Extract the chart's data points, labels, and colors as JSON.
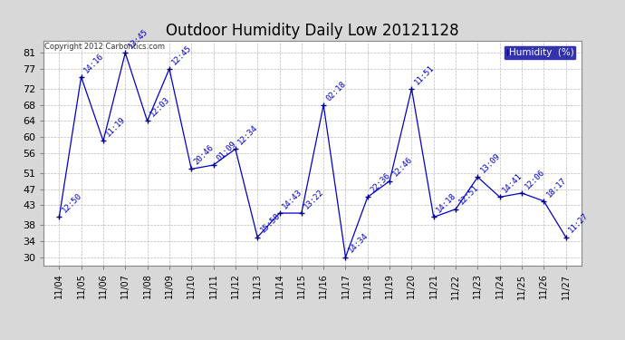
{
  "title": "Outdoor Humidity Daily Low 20121128",
  "background_color": "#d8d8d8",
  "plot_bg_color": "#ffffff",
  "line_color": "#0000cc",
  "marker_color": "#000080",
  "text_color": "#0000cc",
  "copyright_text": "Copyright 2012 Carbontics.com",
  "legend_label": "Humidity  (%)",
  "legend_bg": "#000099",
  "legend_text_color": "#ffffff",
  "yticks": [
    30,
    34,
    38,
    43,
    47,
    51,
    56,
    60,
    64,
    68,
    72,
    77,
    81
  ],
  "xlabels": [
    "11/04",
    "11/05",
    "11/06",
    "11/07",
    "11/08",
    "11/09",
    "11/10",
    "11/11",
    "11/12",
    "11/13",
    "11/14",
    "11/15",
    "11/16",
    "11/17",
    "11/18",
    "11/19",
    "11/20",
    "11/21",
    "11/22",
    "11/23",
    "11/24",
    "11/25",
    "11/26",
    "11/27"
  ],
  "x_indices": [
    0,
    1,
    2,
    3,
    4,
    5,
    6,
    7,
    8,
    9,
    10,
    11,
    12,
    13,
    14,
    15,
    16,
    17,
    18,
    19,
    20,
    21,
    22,
    23
  ],
  "y_values": [
    40,
    75,
    59,
    81,
    64,
    77,
    52,
    53,
    57,
    35,
    41,
    41,
    68,
    30,
    45,
    49,
    72,
    40,
    42,
    50,
    45,
    46,
    44,
    35
  ],
  "point_labels": [
    "12:50",
    "14:16",
    "11:19",
    "13:45",
    "12:03",
    "12:45",
    "20:46",
    "01:09",
    "12:34",
    "15:58",
    "14:43",
    "13:22",
    "02:18",
    "14:34",
    "22:36",
    "12:46",
    "11:51",
    "14:18",
    "12:51",
    "13:09",
    "14:41",
    "12:06",
    "18:17",
    "11:27"
  ],
  "ylim_min": 28,
  "ylim_max": 84,
  "title_fontsize": 12,
  "label_fontsize": 6.5,
  "tick_fontsize": 8,
  "xtick_fontsize": 7
}
